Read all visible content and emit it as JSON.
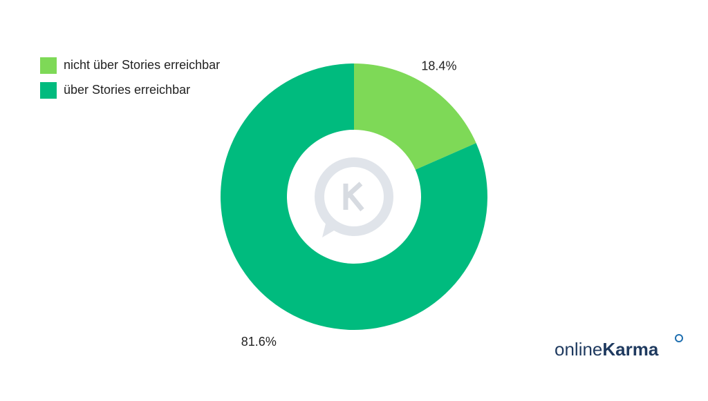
{
  "chart_data": {
    "type": "donut",
    "categories": [
      "nicht über Stories erreichbar",
      "über Stories erreichbar"
    ],
    "values": [
      18.4,
      81.6
    ],
    "value_labels": [
      "18.4%",
      "81.6%"
    ],
    "colors": [
      "#7ed957",
      "#00bb7e"
    ],
    "legend": "top-left"
  },
  "logo": {
    "light": "online",
    "bold": "Karma"
  }
}
